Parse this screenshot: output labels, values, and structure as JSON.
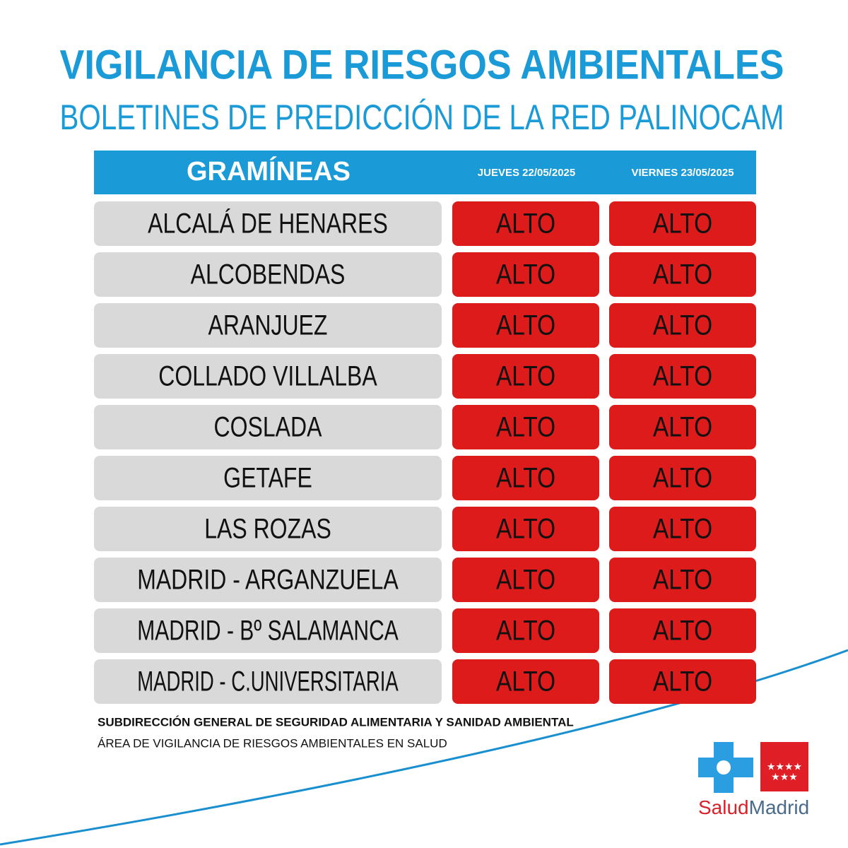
{
  "header": {
    "title": "VIGILANCIA DE RIESGOS AMBIENTALES",
    "subtitle": "BOLETINES DE PREDICCIÓN DE LA RED PALINOCAM"
  },
  "table": {
    "columns": [
      "GRAMÍNEAS",
      "JUEVES 22/05/2025",
      "VIERNES 23/05/2025"
    ],
    "rows": [
      [
        "ALCALÁ DE HENARES",
        "ALTO",
        "ALTO"
      ],
      [
        "ALCOBENDAS",
        "ALTO",
        "ALTO"
      ],
      [
        "ARANJUEZ",
        "ALTO",
        "ALTO"
      ],
      [
        "COLLADO VILLALBA",
        "ALTO",
        "ALTO"
      ],
      [
        "COSLADA",
        "ALTO",
        "ALTO"
      ],
      [
        "GETAFE",
        "ALTO",
        "ALTO"
      ],
      [
        "LAS ROZAS",
        "ALTO",
        "ALTO"
      ],
      [
        "MADRID - ARGANZUELA",
        "ALTO",
        "ALTO"
      ],
      [
        "MADRID - Bº SALAMANCA",
        "ALTO",
        "ALTO"
      ],
      [
        "MADRID - C.UNIVERSITARIA",
        "ALTO",
        "ALTO"
      ]
    ]
  },
  "footer": {
    "lines": [
      "SUBDIRECCIÓN GENERAL DE SEGURIDAD ALIMENTARIA Y SANIDAD AMBIENTAL",
      "ÁREA DE VIGILANCIA DE RIESGOS AMBIENTALES EN SALUD"
    ]
  },
  "logo": {
    "parts": [
      "Salud",
      "Madrid"
    ]
  }
}
